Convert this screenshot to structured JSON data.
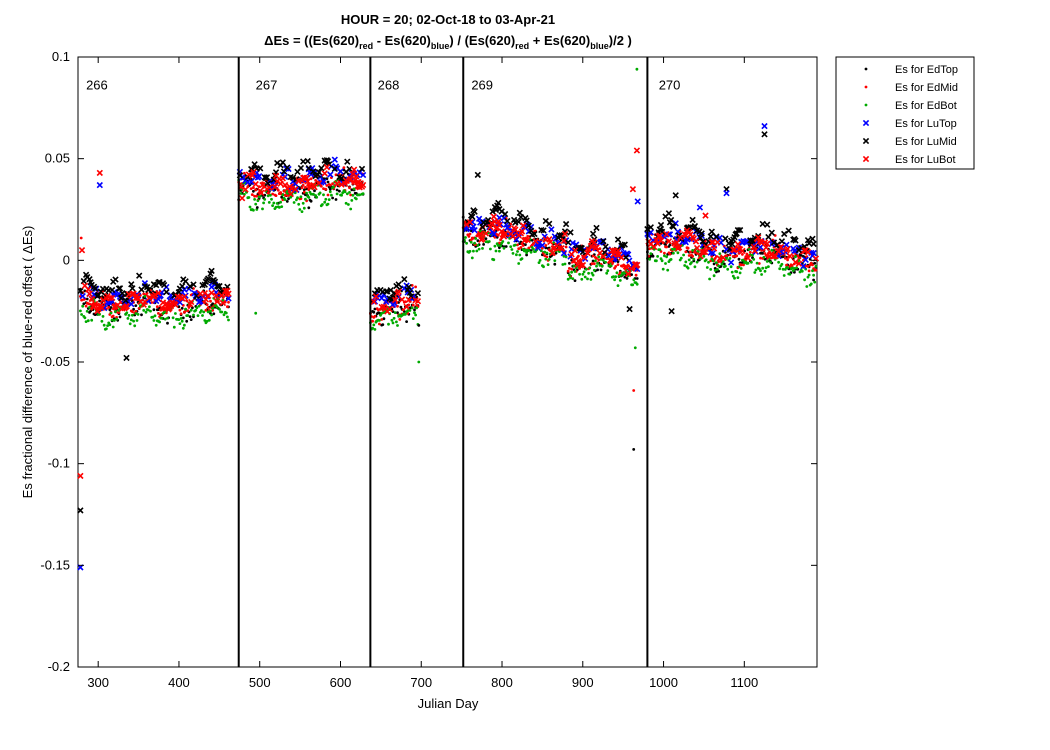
{
  "chart_data": {
    "type": "scatter",
    "title_line1": "HOUR = 20; 02-Oct-18 to 03-Apr-21",
    "title_line2": {
      "delta": "Δ",
      "p1": "Es = ((Es(620)",
      "s1": "red",
      "p2": " - Es(620)",
      "s2": "blue",
      "p3": ") / (Es(620)",
      "s3": "red",
      "p4": " + Es(620)",
      "s4": "blue",
      "p5": ")/2  )"
    },
    "xlabel": "Julian Day",
    "ylabel": "Es fractional difference of blue-red offset (   ΔEs)",
    "xlim": [
      275,
      1190
    ],
    "ylim": [
      -0.2,
      0.1
    ],
    "xticks": [
      300,
      400,
      500,
      600,
      700,
      800,
      900,
      1000,
      1100
    ],
    "yticks": [
      -0.2,
      -0.15,
      -0.1,
      -0.05,
      0,
      0.05,
      0.1
    ],
    "ytick_labels": [
      "-0.2",
      "-0.15",
      "-0.1",
      "-0.05",
      "0",
      "0.05",
      "0.1"
    ],
    "grid": false,
    "legend_position": "outside-top-right",
    "deployment_boundaries": [
      474,
      637,
      752,
      980
    ],
    "deployment_labels": [
      {
        "label": "266",
        "x": 285
      },
      {
        "label": "267",
        "x": 495
      },
      {
        "label": "268",
        "x": 646
      },
      {
        "label": "269",
        "x": 762
      },
      {
        "label": "270",
        "x": 994
      }
    ],
    "segments": [
      {
        "x0": 278,
        "x1": 462,
        "base": [
          -0.018,
          -0.02,
          -0.022,
          -0.023,
          -0.021,
          -0.024,
          -0.02,
          -0.019,
          -0.02,
          -0.021
        ]
      },
      {
        "x0": 474,
        "x1": 628,
        "base": [
          0.034,
          0.036,
          0.035,
          0.037,
          0.036,
          0.035,
          0.036,
          0.037,
          0.038,
          0.04
        ]
      },
      {
        "x0": 637,
        "x1": 697,
        "base": [
          -0.024,
          -0.023,
          -0.023,
          -0.024,
          -0.023
        ]
      },
      {
        "x0": 752,
        "x1": 880,
        "base": [
          0.016,
          0.013,
          0.012,
          0.011,
          0.01,
          0.009,
          0.008,
          0.007
        ]
      },
      {
        "x0": 882,
        "x1": 968,
        "base": [
          0.0,
          -0.003,
          0.001,
          0.0,
          -0.002,
          -0.004
        ]
      },
      {
        "x0": 980,
        "x1": 1190,
        "base": [
          0.008,
          0.007,
          0.006,
          0.005,
          0.004,
          0.004,
          0.003,
          0.002,
          0.001,
          0.0
        ]
      }
    ],
    "series": [
      {
        "name": "Es for EdTop",
        "color": "#000000",
        "marker": "dot",
        "offset": -0.001,
        "spread": 0.0075,
        "density": 1.0
      },
      {
        "name": "Es for EdMid",
        "color": "#ff0000",
        "marker": "dot",
        "offset": 0.0,
        "spread": 0.0075,
        "density": 1.0
      },
      {
        "name": "Es for EdBot",
        "color": "#00aa00",
        "marker": "dot",
        "offset": -0.005,
        "spread": 0.0075,
        "density": 1.0
      },
      {
        "name": "Es for LuTop",
        "color": "#0000ff",
        "marker": "x",
        "offset": 0.004,
        "spread": 0.005,
        "density": 0.45
      },
      {
        "name": "Es for LuMid",
        "color": "#000000",
        "marker": "x",
        "offset": 0.008,
        "spread": 0.005,
        "density": 0.45
      },
      {
        "name": "Es for LuBot",
        "color": "#ff0000",
        "marker": "x",
        "offset": 0.002,
        "spread": 0.005,
        "density": 0.45
      }
    ],
    "outliers": [
      {
        "series": 3,
        "x": 278,
        "y": -0.151
      },
      {
        "series": 4,
        "x": 278,
        "y": -0.123
      },
      {
        "series": 5,
        "x": 278,
        "y": -0.106
      },
      {
        "series": 1,
        "x": 279,
        "y": 0.011
      },
      {
        "series": 5,
        "x": 280,
        "y": 0.005
      },
      {
        "series": 5,
        "x": 302,
        "y": 0.043
      },
      {
        "series": 3,
        "x": 302,
        "y": 0.037
      },
      {
        "series": 4,
        "x": 335,
        "y": -0.048
      },
      {
        "series": 2,
        "x": 495,
        "y": -0.026
      },
      {
        "series": 0,
        "x": 497,
        "y": 0.026
      },
      {
        "series": 0,
        "x": 697,
        "y": -0.032
      },
      {
        "series": 2,
        "x": 697,
        "y": -0.05
      },
      {
        "series": 4,
        "x": 770,
        "y": 0.042
      },
      {
        "series": 4,
        "x": 958,
        "y": -0.024
      },
      {
        "series": 1,
        "x": 963,
        "y": -0.064
      },
      {
        "series": 0,
        "x": 963,
        "y": -0.093
      },
      {
        "series": 2,
        "x": 965,
        "y": -0.043
      },
      {
        "series": 5,
        "x": 962,
        "y": 0.035
      },
      {
        "series": 5,
        "x": 967,
        "y": 0.054
      },
      {
        "series": 3,
        "x": 968,
        "y": 0.029
      },
      {
        "series": 2,
        "x": 967,
        "y": 0.094
      },
      {
        "series": 4,
        "x": 1010,
        "y": -0.025
      },
      {
        "series": 4,
        "x": 1015,
        "y": 0.032
      },
      {
        "series": 3,
        "x": 1045,
        "y": 0.026
      },
      {
        "series": 5,
        "x": 1052,
        "y": 0.022
      },
      {
        "series": 4,
        "x": 1078,
        "y": 0.035
      },
      {
        "series": 3,
        "x": 1078,
        "y": 0.033
      },
      {
        "series": 3,
        "x": 1125,
        "y": 0.066
      },
      {
        "series": 4,
        "x": 1125,
        "y": 0.062
      }
    ]
  }
}
